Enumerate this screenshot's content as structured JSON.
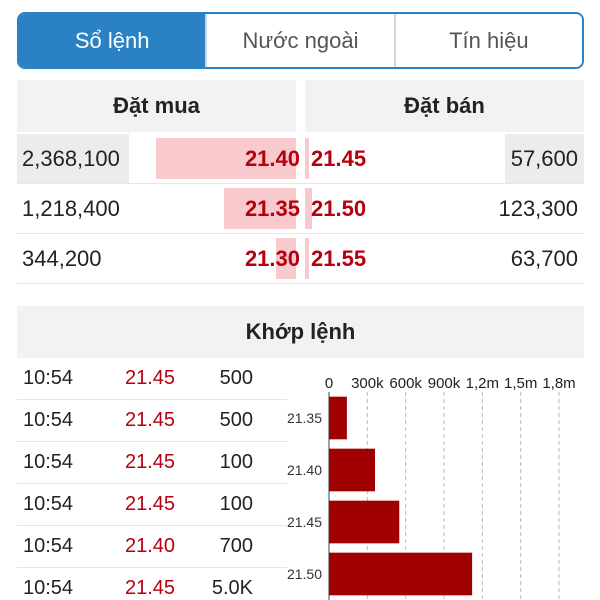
{
  "tabs": [
    {
      "label": "Sổ lệnh",
      "active": true
    },
    {
      "label": "Nước ngoài",
      "active": false
    },
    {
      "label": "Tín hiệu",
      "active": false
    }
  ],
  "order_book": {
    "buy_header": "Đặt mua",
    "sell_header": "Đặt bán",
    "rows": [
      {
        "buy_volume": "2,368,100",
        "buy_price": "21.40",
        "sell_price": "21.45",
        "sell_volume": "57,600"
      },
      {
        "buy_volume": "1,218,400",
        "buy_price": "21.35",
        "sell_price": "21.50",
        "sell_volume": "123,300"
      },
      {
        "buy_volume": "344,200",
        "buy_price": "21.30",
        "sell_price": "21.55",
        "sell_volume": "63,700"
      }
    ]
  },
  "matched": {
    "header": "Khớp lệnh",
    "trades": [
      {
        "time": "10:54",
        "price": "21.45",
        "volume": "500"
      },
      {
        "time": "10:54",
        "price": "21.45",
        "volume": "500"
      },
      {
        "time": "10:54",
        "price": "21.45",
        "volume": "100"
      },
      {
        "time": "10:54",
        "price": "21.45",
        "volume": "100"
      },
      {
        "time": "10:54",
        "price": "21.40",
        "volume": "700"
      },
      {
        "time": "10:54",
        "price": "21.45",
        "volume": "5.0K"
      }
    ]
  },
  "colors": {
    "accent": "#2a82c4",
    "price_red": "#b5000f",
    "bar_dark_red": "#a00000",
    "depth_bar_pink": "#f8c9cd"
  },
  "chart_data": {
    "type": "bar",
    "orientation": "horizontal",
    "categories": [
      "21.35",
      "21.40",
      "21.45",
      "21.50"
    ],
    "values": [
      140000,
      360000,
      550000,
      1120000
    ],
    "x_tick_labels": [
      "0",
      "300k",
      "600k",
      "900k",
      "1,2m",
      "1,5m",
      "1,8m"
    ],
    "xlim": [
      0,
      1800000
    ],
    "grid": true,
    "bar_color": "#a00000"
  }
}
